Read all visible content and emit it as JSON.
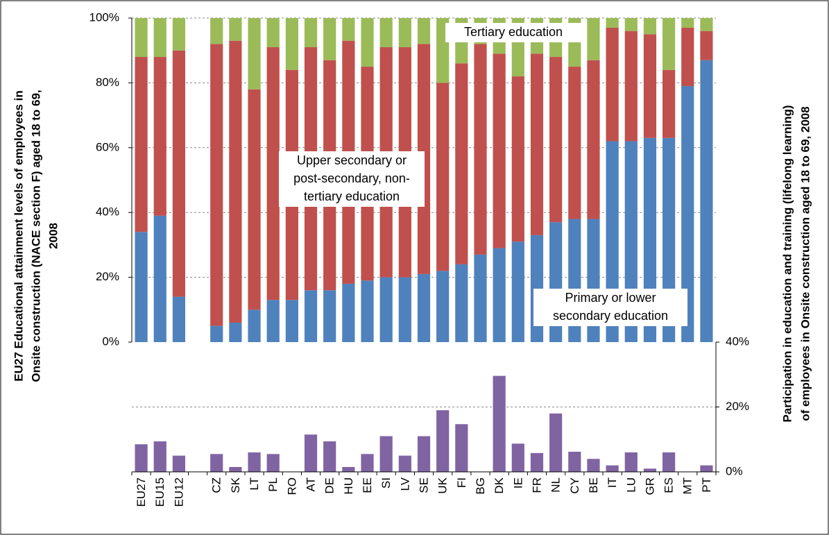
{
  "chart_data": [
    {
      "type": "stacked_bar",
      "ylabel": [
        "EU27 Educational attainment levels of employees in",
        "Onsite construction (NACE section F) aged 18 to 69,",
        "2008"
      ],
      "ylim": [
        0,
        100
      ],
      "yticks": [
        {
          "value": 0,
          "label": "0%"
        },
        {
          "value": 20,
          "label": "20%"
        },
        {
          "value": 40,
          "label": "40%"
        },
        {
          "value": 60,
          "label": "60%"
        },
        {
          "value": 80,
          "label": "80%"
        },
        {
          "value": 100,
          "label": "100%"
        }
      ],
      "grid": true,
      "series": [
        {
          "color": "#4f81bd",
          "values": [
            34,
            39,
            14,
            null,
            5,
            6,
            10,
            13,
            13,
            16,
            16,
            18,
            19,
            20,
            20,
            21,
            22,
            24,
            27,
            29,
            31,
            33,
            37,
            38,
            38,
            62,
            62,
            63,
            63,
            79,
            87
          ]
        },
        {
          "color": "#c0504d",
          "values": [
            54,
            49,
            76,
            null,
            87,
            87,
            68,
            78,
            71,
            75,
            71,
            75,
            66,
            71,
            71,
            71,
            58,
            62,
            65,
            60,
            51,
            56,
            51,
            47,
            49,
            35,
            34,
            32,
            21,
            18,
            9
          ]
        },
        {
          "color": "#9bbb59",
          "values": [
            12,
            12,
            10,
            null,
            8,
            7,
            22,
            9,
            16,
            9,
            13,
            7,
            15,
            9,
            9,
            8,
            20,
            14,
            8,
            11,
            18,
            11,
            12,
            15,
            13,
            3,
            4,
            5,
            16,
            3,
            4
          ]
        }
      ],
      "annotations": [
        [
          "Tertiary education"
        ],
        [
          "Upper secondary or",
          "post-secondary, non-",
          "tertiary education"
        ],
        [
          "Primary or lower",
          "secondary education"
        ]
      ]
    },
    {
      "type": "bar",
      "categories": [
        "EU27",
        "EU15",
        "EU12",
        null,
        "CZ",
        "SK",
        "LT",
        "PL",
        "RO",
        "AT",
        "DE",
        "HU",
        "EE",
        "SI",
        "LV",
        "SE",
        "UK",
        "FI",
        "BG",
        "DK",
        "IE",
        "FR",
        "NL",
        "CY",
        "BE",
        "IT",
        "LU",
        "GR",
        "ES",
        "MT",
        "PT"
      ],
      "values": [
        8.5,
        9.4,
        5,
        null,
        5.5,
        1.5,
        6,
        5.5,
        0,
        11.5,
        9.4,
        1.5,
        5.5,
        11,
        5,
        11,
        19,
        14.7,
        0,
        29.6,
        8.7,
        5.8,
        18,
        6.2,
        4,
        2,
        6,
        1,
        6,
        0,
        2
      ],
      "color": "#8064a2",
      "ylabel": [
        "Participation in education and training (lifelong learning)",
        "of employees in Onsite construction aged 18 to 69, 2008"
      ],
      "ylim": [
        0,
        40
      ],
      "yticks": [
        {
          "value": 0,
          "label": "0%"
        },
        {
          "value": 20,
          "label": "20%"
        },
        {
          "value": 40,
          "label": "40%"
        }
      ],
      "grid": true
    }
  ]
}
